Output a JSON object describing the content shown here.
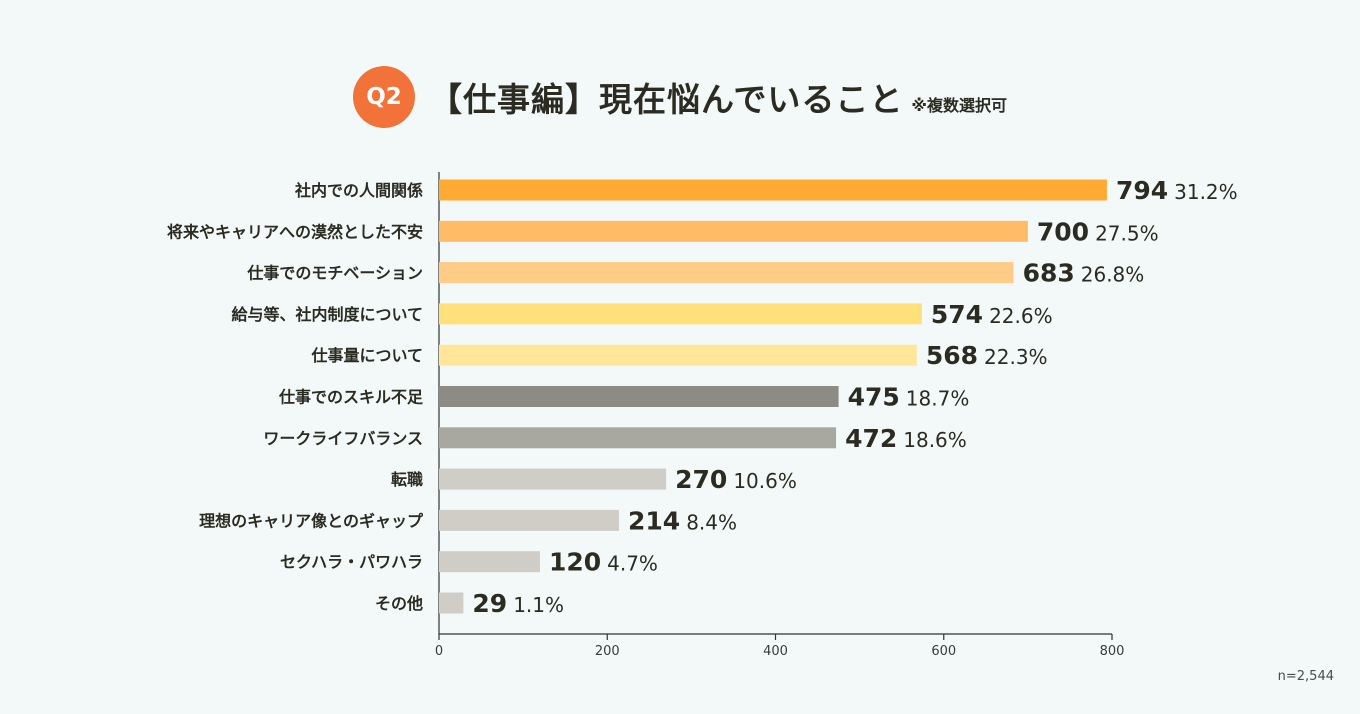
{
  "title": {
    "badge": "Q2",
    "text": "【仕事編】現在悩んでいること",
    "note": "※複数選択可"
  },
  "sample_size": "n=2,544",
  "colors": [
    "#ffaa33",
    "#ffbb66",
    "#ffcc88",
    "#ffe07a",
    "#ffe699",
    "#8c8c85",
    "#a8a8a0",
    "#cfcdc6",
    "#cfcdc6",
    "#cfcdc6",
    "#cfcdc6"
  ],
  "chart_data": {
    "type": "bar",
    "orientation": "horizontal",
    "title": "【仕事編】現在悩んでいること",
    "categories": [
      "社内での人間関係",
      "将来やキャリアへの漠然とした不安",
      "仕事でのモチベーション",
      "給与等、社内制度について",
      "仕事量について",
      "仕事でのスキル不足",
      "ワークライフバランス",
      "転職",
      "理想のキャリア像とのギャップ",
      "セクハラ・パワハラ",
      "その他"
    ],
    "values": [
      794,
      700,
      683,
      574,
      568,
      475,
      472,
      270,
      214,
      120,
      29
    ],
    "percent_labels": [
      "31.2%",
      "27.5%",
      "26.8%",
      "22.6%",
      "22.3%",
      "18.7%",
      "18.6%",
      "10.6%",
      "8.4%",
      "4.7%",
      "1.1%"
    ],
    "xlim": [
      0,
      800
    ],
    "xticks": [
      0,
      200,
      400,
      600,
      800
    ],
    "xlabel": "",
    "ylabel": "",
    "grid": false
  }
}
